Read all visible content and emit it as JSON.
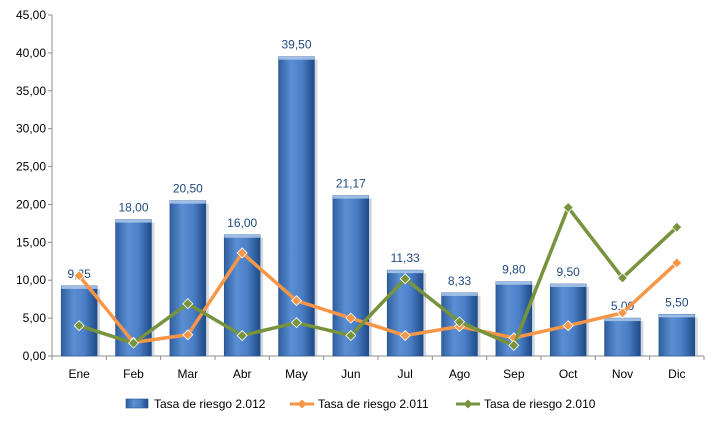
{
  "chart_data": {
    "type": "bar",
    "categories": [
      "Ene",
      "Feb",
      "Mar",
      "Abr",
      "May",
      "Jun",
      "Jul",
      "Ago",
      "Sep",
      "Oct",
      "Nov",
      "Dic"
    ],
    "series": [
      {
        "name": "Tasa de riesgo 2.012",
        "type": "bar",
        "color": "#4f81bd",
        "values": [
          9.25,
          18.0,
          20.5,
          16.0,
          39.5,
          21.17,
          11.33,
          8.33,
          9.8,
          9.5,
          5.0,
          5.5
        ],
        "labels": [
          "9,25",
          "18,00",
          "20,50",
          "16,00",
          "39,50",
          "21,17",
          "11,33",
          "8,33",
          "9,80",
          "9,50",
          "5,00",
          "5,50"
        ]
      },
      {
        "name": "Tasa de riesgo 2.011",
        "type": "line",
        "color": "#f79646",
        "values": [
          10.6,
          1.8,
          2.8,
          13.6,
          7.3,
          5.0,
          2.7,
          3.9,
          2.4,
          4.0,
          5.7,
          12.3
        ]
      },
      {
        "name": "Tasa de riesgo 2.010",
        "type": "line",
        "color": "#77933c",
        "values": [
          4.0,
          1.7,
          6.9,
          2.7,
          4.4,
          2.7,
          10.2,
          4.5,
          1.4,
          19.6,
          10.3,
          17.0
        ]
      }
    ],
    "yticks": [
      "0,00",
      "5,00",
      "10,00",
      "15,00",
      "20,00",
      "25,00",
      "30,00",
      "35,00",
      "40,00",
      "45,00"
    ],
    "ylim": [
      0,
      45
    ],
    "title": "",
    "xlabel": "",
    "ylabel": "",
    "grid": false,
    "legend": "bottom"
  }
}
